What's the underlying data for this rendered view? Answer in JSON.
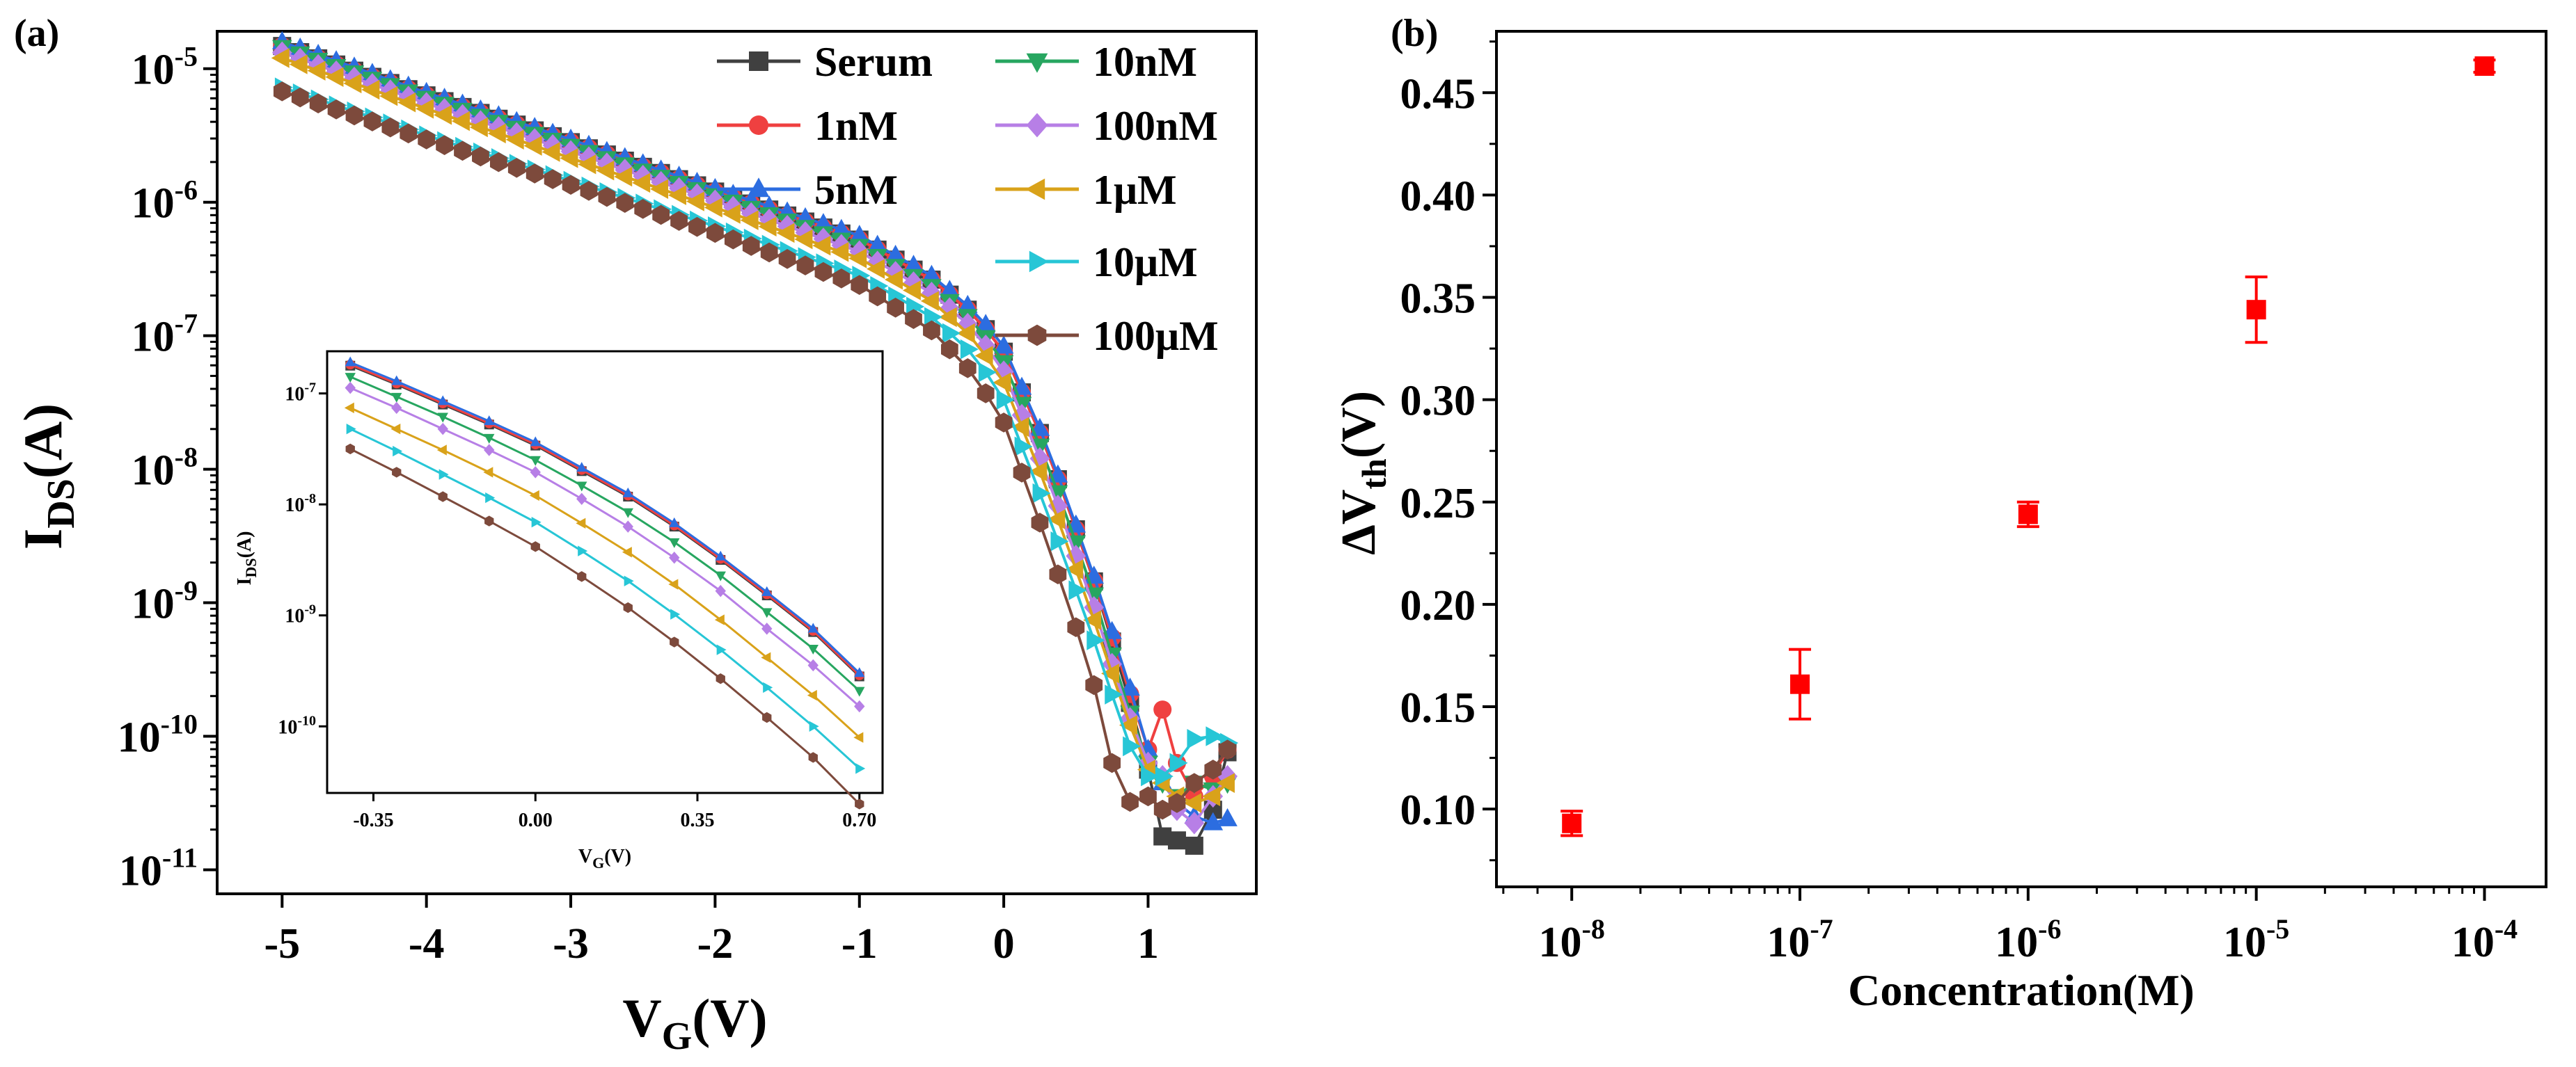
{
  "chart_data": [
    {
      "panel": "(a)",
      "type": "line",
      "xlabel_main": "V",
      "xlabel_sub": "G",
      "xlabel_unit": "(V)",
      "ylabel_main": "I",
      "ylabel_sub": "DS",
      "ylabel_unit": "(A)",
      "yscale": "log",
      "xlim": [
        -5.45,
        1.75
      ],
      "ylim": [
        -11.18,
        -4.72
      ],
      "xticks": [
        -5,
        -4,
        -3,
        -2,
        -1,
        0,
        1
      ],
      "xtick_labels": [
        "-5",
        "-4",
        "-3",
        "-2",
        "-1",
        "0",
        "1"
      ],
      "yticks": [
        -11,
        -10,
        -9,
        -8,
        -7,
        -6,
        -5
      ],
      "ytick_labels": [
        {
          "base": "10",
          "exp": "-11"
        },
        {
          "base": "10",
          "exp": "-10"
        },
        {
          "base": "10",
          "exp": "-9"
        },
        {
          "base": "10",
          "exp": "-8"
        },
        {
          "base": "10",
          "exp": "-7"
        },
        {
          "base": "10",
          "exp": "-6"
        },
        {
          "base": "10",
          "exp": "-5"
        }
      ],
      "legend_position": "top-right",
      "series": [
        {
          "name": "Serum",
          "color": "#404040",
          "marker": "square",
          "knots": [
            [
              -5,
              -4.83
            ],
            [
              -4,
              -5.2
            ],
            [
              -3,
              -5.55
            ],
            [
              -2,
              -5.92
            ],
            [
              -1,
              -6.28
            ],
            [
              -0.5,
              -6.58
            ],
            [
              -0.2,
              -6.85
            ],
            [
              0,
              -7.12
            ],
            [
              0.3,
              -7.85
            ],
            [
              0.6,
              -8.75
            ],
            [
              0.85,
              -9.65
            ],
            [
              1.0,
              -10.25
            ],
            [
              1.1,
              -10.75
            ],
            [
              1.2,
              -10.78
            ],
            [
              1.32,
              -10.82
            ],
            [
              1.45,
              -10.55
            ],
            [
              1.55,
              -10.12
            ]
          ]
        },
        {
          "name": "1nM",
          "color": "#ef4040",
          "marker": "circle",
          "knots": [
            [
              -5,
              -4.83
            ],
            [
              -4,
              -5.2
            ],
            [
              -3,
              -5.55
            ],
            [
              -2,
              -5.92
            ],
            [
              -1,
              -6.28
            ],
            [
              -0.5,
              -6.58
            ],
            [
              -0.2,
              -6.85
            ],
            [
              0,
              -7.12
            ],
            [
              0.3,
              -7.85
            ],
            [
              0.6,
              -8.75
            ],
            [
              0.85,
              -9.6
            ],
            [
              1.0,
              -10.1
            ],
            [
              1.1,
              -9.8
            ],
            [
              1.2,
              -10.2
            ],
            [
              1.32,
              -10.45
            ],
            [
              1.45,
              -10.3
            ],
            [
              1.55,
              -10.1
            ]
          ]
        },
        {
          "name": "5nM",
          "color": "#2c6de0",
          "marker": "triangle-up",
          "knots": [
            [
              -5,
              -4.8
            ],
            [
              -4,
              -5.18
            ],
            [
              -3,
              -5.53
            ],
            [
              -2,
              -5.9
            ],
            [
              -1,
              -6.25
            ],
            [
              -0.5,
              -6.55
            ],
            [
              -0.2,
              -6.82
            ],
            [
              0,
              -7.08
            ],
            [
              0.3,
              -7.82
            ],
            [
              0.6,
              -8.72
            ],
            [
              0.85,
              -9.55
            ],
            [
              1.0,
              -10.1
            ],
            [
              1.1,
              -10.35
            ],
            [
              1.2,
              -10.5
            ],
            [
              1.32,
              -10.6
            ],
            [
              1.45,
              -10.65
            ],
            [
              1.55,
              -10.62
            ]
          ]
        },
        {
          "name": "10nM",
          "color": "#27a660",
          "marker": "triangle-down",
          "knots": [
            [
              -5,
              -4.84
            ],
            [
              -4,
              -5.22
            ],
            [
              -3,
              -5.58
            ],
            [
              -2,
              -5.95
            ],
            [
              -1,
              -6.33
            ],
            [
              -0.5,
              -6.63
            ],
            [
              -0.2,
              -6.9
            ],
            [
              0,
              -7.2
            ],
            [
              0.3,
              -7.95
            ],
            [
              0.6,
              -8.85
            ],
            [
              0.85,
              -9.75
            ],
            [
              1.0,
              -10.2
            ],
            [
              1.1,
              -10.35
            ],
            [
              1.2,
              -10.45
            ],
            [
              1.32,
              -10.35
            ],
            [
              1.45,
              -10.4
            ],
            [
              1.55,
              -10.35
            ]
          ]
        },
        {
          "name": "100nM",
          "color": "#b77fe6",
          "marker": "diamond",
          "knots": [
            [
              -5,
              -4.88
            ],
            [
              -4,
              -5.26
            ],
            [
              -3,
              -5.62
            ],
            [
              -2,
              -5.99
            ],
            [
              -1,
              -6.37
            ],
            [
              -0.5,
              -6.68
            ],
            [
              -0.2,
              -6.96
            ],
            [
              0,
              -7.27
            ],
            [
              0.3,
              -8.05
            ],
            [
              0.6,
              -8.95
            ],
            [
              0.85,
              -9.8
            ],
            [
              1.0,
              -10.2
            ],
            [
              1.1,
              -10.3
            ],
            [
              1.2,
              -10.55
            ],
            [
              1.32,
              -10.65
            ],
            [
              1.45,
              -10.45
            ],
            [
              1.55,
              -10.3
            ]
          ]
        },
        {
          "name": "1μM",
          "color": "#d9a21a",
          "marker": "triangle-left",
          "knots": [
            [
              -5,
              -4.92
            ],
            [
              -4,
              -5.3
            ],
            [
              -3,
              -5.67
            ],
            [
              -2,
              -6.04
            ],
            [
              -1,
              -6.42
            ],
            [
              -0.5,
              -6.74
            ],
            [
              -0.2,
              -7.03
            ],
            [
              0,
              -7.35
            ],
            [
              0.3,
              -8.15
            ],
            [
              0.6,
              -9.05
            ],
            [
              0.85,
              -9.85
            ],
            [
              1.0,
              -10.25
            ],
            [
              1.1,
              -10.35
            ],
            [
              1.2,
              -10.45
            ],
            [
              1.32,
              -10.5
            ],
            [
              1.45,
              -10.45
            ],
            [
              1.55,
              -10.35
            ]
          ]
        },
        {
          "name": "10μM",
          "color": "#27c6d6",
          "marker": "triangle-right",
          "knots": [
            [
              -5,
              -5.14
            ],
            [
              -4,
              -5.5
            ],
            [
              -3,
              -5.84
            ],
            [
              -2,
              -6.18
            ],
            [
              -1,
              -6.55
            ],
            [
              -0.5,
              -6.86
            ],
            [
              -0.2,
              -7.15
            ],
            [
              0,
              -7.48
            ],
            [
              0.3,
              -8.32
            ],
            [
              0.6,
              -9.2
            ],
            [
              0.8,
              -9.85
            ],
            [
              0.95,
              -10.3
            ],
            [
              1.1,
              -10.3
            ],
            [
              1.2,
              -10.2
            ],
            [
              1.32,
              -10.02
            ],
            [
              1.45,
              -10.0
            ],
            [
              1.55,
              -10.05
            ]
          ]
        },
        {
          "name": "100μM",
          "color": "#7d4a3c",
          "marker": "hexagon",
          "knots": [
            [
              -5,
              -5.17
            ],
            [
              -4,
              -5.53
            ],
            [
              -3,
              -5.87
            ],
            [
              -2,
              -6.23
            ],
            [
              -1,
              -6.62
            ],
            [
              -0.5,
              -6.96
            ],
            [
              -0.2,
              -7.3
            ],
            [
              0,
              -7.65
            ],
            [
              0.3,
              -8.55
            ],
            [
              0.6,
              -9.5
            ],
            [
              0.75,
              -10.2
            ],
            [
              0.85,
              -10.5
            ],
            [
              1.0,
              -10.45
            ],
            [
              1.1,
              -10.55
            ],
            [
              1.2,
              -10.5
            ],
            [
              1.32,
              -10.35
            ],
            [
              1.45,
              -10.25
            ],
            [
              1.55,
              -10.1
            ]
          ]
        }
      ],
      "inset": {
        "type": "line",
        "xlabel_main": "V",
        "xlabel_sub": "G",
        "xlabel_unit": "(V)",
        "ylabel_main": "I",
        "ylabel_sub": "DS",
        "ylabel_unit": "(A)",
        "yscale": "log",
        "xlim": [
          -0.45,
          0.75
        ],
        "ylim": [
          -10.6,
          -6.62
        ],
        "xticks": [
          -0.35,
          0.0,
          0.35,
          0.7
        ],
        "xtick_labels": [
          "-0.35",
          "0.00",
          "0.35",
          "0.70"
        ],
        "yticks": [
          -10,
          -9,
          -8,
          -7
        ],
        "ytick_labels": [
          {
            "base": "10",
            "exp": "-10"
          },
          {
            "base": "10",
            "exp": "-9"
          },
          {
            "base": "10",
            "exp": "-8"
          },
          {
            "base": "10",
            "exp": "-7"
          }
        ],
        "x": [
          -0.4,
          -0.3,
          -0.2,
          -0.1,
          0.0,
          0.1,
          0.2,
          0.3,
          0.4,
          0.5,
          0.6,
          0.7
        ],
        "series": [
          {
            "name": "Serum",
            "values": [
              -6.75,
              -6.92,
              -7.1,
              -7.28,
              -7.47,
              -7.7,
              -7.93,
              -8.2,
              -8.5,
              -8.82,
              -9.15,
              -9.55
            ]
          },
          {
            "name": "1nM",
            "values": [
              -6.74,
              -6.91,
              -7.09,
              -7.27,
              -7.46,
              -7.69,
              -7.92,
              -8.19,
              -8.49,
              -8.81,
              -9.14,
              -9.54
            ]
          },
          {
            "name": "5nM",
            "values": [
              -6.72,
              -6.89,
              -7.07,
              -7.25,
              -7.44,
              -7.67,
              -7.9,
              -8.17,
              -8.47,
              -8.79,
              -9.12,
              -9.52
            ]
          },
          {
            "name": "10nM",
            "values": [
              -6.85,
              -7.03,
              -7.21,
              -7.4,
              -7.6,
              -7.83,
              -8.07,
              -8.34,
              -8.64,
              -8.97,
              -9.3,
              -9.68
            ]
          },
          {
            "name": "100nM",
            "values": [
              -6.95,
              -7.13,
              -7.32,
              -7.51,
              -7.71,
              -7.95,
              -8.2,
              -8.48,
              -8.78,
              -9.12,
              -9.45,
              -9.82
            ]
          },
          {
            "name": "1μM",
            "values": [
              -7.13,
              -7.32,
              -7.51,
              -7.71,
              -7.92,
              -8.17,
              -8.43,
              -8.72,
              -9.04,
              -9.38,
              -9.72,
              -10.1
            ]
          },
          {
            "name": "10μM",
            "values": [
              -7.32,
              -7.52,
              -7.73,
              -7.94,
              -8.16,
              -8.42,
              -8.69,
              -8.99,
              -9.31,
              -9.65,
              -10.0,
              -10.38
            ]
          },
          {
            "name": "100μM",
            "values": [
              -7.5,
              -7.71,
              -7.93,
              -8.15,
              -8.38,
              -8.65,
              -8.93,
              -9.24,
              -9.57,
              -9.92,
              -10.28,
              -10.7
            ]
          }
        ]
      }
    },
    {
      "panel": "(b)",
      "type": "scatter",
      "xlabel": "Concentration(M)",
      "ylabel_main": "ΔV",
      "ylabel_sub": "th",
      "ylabel_unit": "(V)",
      "xscale": "log",
      "xlim": [
        -8.33,
        -3.73
      ],
      "ylim": [
        0.062,
        0.48
      ],
      "xticks": [
        -8,
        -7,
        -6,
        -5,
        -4
      ],
      "xtick_labels": [
        {
          "base": "10",
          "exp": "-8"
        },
        {
          "base": "10",
          "exp": "-7"
        },
        {
          "base": "10",
          "exp": "-6"
        },
        {
          "base": "10",
          "exp": "-5"
        },
        {
          "base": "10",
          "exp": "-4"
        }
      ],
      "yticks": [
        0.1,
        0.15,
        0.2,
        0.25,
        0.3,
        0.35,
        0.4,
        0.45
      ],
      "ytick_labels": [
        "0.10",
        "0.15",
        "0.20",
        "0.25",
        "0.30",
        "0.35",
        "0.40",
        "0.45"
      ],
      "marker_color": "#ff0000",
      "points": [
        {
          "x": 1e-08,
          "y": 0.093,
          "err": 0.006
        },
        {
          "x": 1e-07,
          "y": 0.161,
          "err": 0.017
        },
        {
          "x": 1e-06,
          "y": 0.244,
          "err": 0.006
        },
        {
          "x": 1e-05,
          "y": 0.344,
          "err": 0.016
        },
        {
          "x": 0.0001,
          "y": 0.463,
          "err": 0.003
        }
      ]
    }
  ]
}
